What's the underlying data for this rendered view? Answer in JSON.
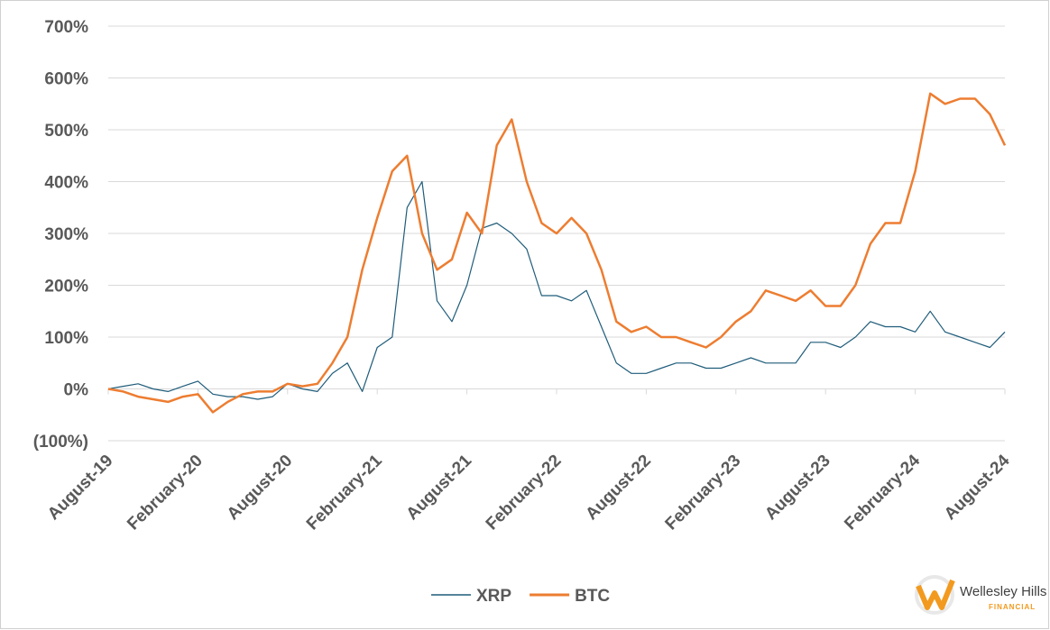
{
  "chart_data": {
    "type": "line",
    "categories": [
      "August-19",
      null,
      null,
      null,
      null,
      null,
      "February-20",
      null,
      null,
      null,
      null,
      null,
      "August-20",
      null,
      null,
      null,
      null,
      null,
      "February-21",
      null,
      null,
      null,
      null,
      null,
      "August-21",
      null,
      null,
      null,
      null,
      null,
      "February-22",
      null,
      null,
      null,
      null,
      null,
      "August-22",
      null,
      null,
      null,
      null,
      null,
      "February-23",
      null,
      null,
      null,
      null,
      null,
      "August-23",
      null,
      null,
      null,
      null,
      null,
      "February-24",
      null,
      null,
      null,
      null,
      null,
      "August-24"
    ],
    "series": [
      {
        "name": "XRP",
        "color": "#1f5c7a",
        "values": [
          0,
          5,
          10,
          0,
          -5,
          5,
          15,
          -10,
          -15,
          -15,
          -20,
          -15,
          10,
          0,
          -5,
          30,
          50,
          -5,
          80,
          100,
          350,
          400,
          170,
          130,
          200,
          310,
          320,
          300,
          270,
          180,
          180,
          170,
          190,
          120,
          50,
          30,
          30,
          40,
          50,
          50,
          40,
          40,
          50,
          60,
          50,
          50,
          50,
          90,
          90,
          80,
          100,
          130,
          120,
          120,
          110,
          150,
          110,
          100,
          90,
          80,
          110
        ]
      },
      {
        "name": "BTC",
        "color": "#ed7d31",
        "values": [
          0,
          -5,
          -15,
          -20,
          -25,
          -15,
          -10,
          -45,
          -25,
          -10,
          -5,
          -5,
          10,
          5,
          10,
          50,
          100,
          230,
          330,
          420,
          450,
          300,
          230,
          250,
          340,
          300,
          470,
          520,
          400,
          320,
          300,
          330,
          300,
          230,
          130,
          110,
          120,
          100,
          100,
          90,
          80,
          100,
          130,
          150,
          190,
          180,
          170,
          190,
          160,
          160,
          200,
          280,
          320,
          320,
          420,
          570,
          550,
          560,
          560,
          530,
          470
        ]
      }
    ],
    "ylim": [
      -100,
      700
    ],
    "yticks": [
      {
        "value": -100,
        "label": "(100%)"
      },
      {
        "value": 0,
        "label": "0%"
      },
      {
        "value": 100,
        "label": "100%"
      },
      {
        "value": 200,
        "label": "200%"
      },
      {
        "value": 300,
        "label": "300%"
      },
      {
        "value": 400,
        "label": "400%"
      },
      {
        "value": 500,
        "label": "500%"
      },
      {
        "value": 600,
        "label": "600%"
      },
      {
        "value": 700,
        "label": "700%"
      }
    ],
    "grid": true,
    "legend": "bottom"
  },
  "brand": {
    "name": "Wellesley Hills",
    "sub": "FINANCIAL"
  }
}
